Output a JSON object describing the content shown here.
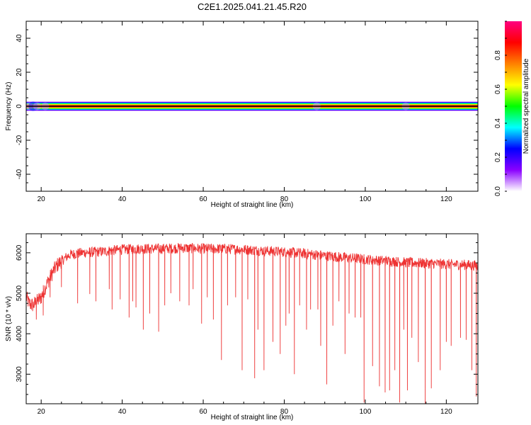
{
  "figure": {
    "title": "C2E1.2025.041.21.45.R20"
  },
  "colorbar": {
    "label": "Normalized spectral amplitude",
    "ticks": [
      "0.0",
      "0.2",
      "0.4",
      "0.6",
      "0.8"
    ],
    "tick_values": [
      0.0,
      0.2,
      0.4,
      0.6,
      0.8
    ],
    "range": [
      0,
      1
    ],
    "colors": [
      "#ffffff",
      "#8a00ff",
      "#0000ff",
      "#00ffff",
      "#00ff00",
      "#ffff00",
      "#ff8000",
      "#ff0000",
      "#ff0080"
    ]
  },
  "panels": {
    "top": {
      "xlabel": "Height of straight line (km)",
      "ylabel": "Frequency (Hz)",
      "xticks": [
        "20",
        "40",
        "60",
        "80",
        "100",
        "120"
      ],
      "yticks": [
        "40",
        "20",
        "0",
        "-20",
        "-40"
      ]
    },
    "bottom": {
      "xlabel": "Height of straight line (km)",
      "ylabel": "SNR (10 * v/v)",
      "xticks": [
        "20",
        "40",
        "60",
        "80",
        "100",
        "120"
      ],
      "yticks": [
        "6000",
        "5000",
        "4000",
        "3000"
      ]
    }
  },
  "chart_data": [
    {
      "type": "heatmap",
      "title": "C2E1.2025.041.21.45.R20",
      "xlabel": "Height of straight line (km)",
      "ylabel": "Frequency (Hz)",
      "xlim": [
        16.3,
        127.8
      ],
      "ylim": [
        -50,
        50
      ],
      "grid": false,
      "x": [
        17,
        18,
        19,
        20,
        21,
        25,
        30,
        40,
        60,
        80,
        88,
        100,
        110,
        120,
        127
      ],
      "y": [
        -2,
        -1,
        0,
        1,
        2
      ],
      "z": [
        [
          0.2,
          0.3,
          0.2,
          0.1,
          0.2,
          0.1,
          0.1,
          0.1,
          0.1,
          0.1,
          0.2,
          0.1,
          0.2,
          0.1,
          0.1
        ],
        [
          0.5,
          0.6,
          0.5,
          0.4,
          0.5,
          0.4,
          0.4,
          0.4,
          0.4,
          0.4,
          0.4,
          0.4,
          0.4,
          0.4,
          0.4
        ],
        [
          1.0,
          1.0,
          1.0,
          1.0,
          1.0,
          1.0,
          1.0,
          1.0,
          1.0,
          1.0,
          1.0,
          1.0,
          1.0,
          1.0,
          1.0
        ],
        [
          0.5,
          0.6,
          0.5,
          0.4,
          0.5,
          0.4,
          0.4,
          0.4,
          0.4,
          0.4,
          0.4,
          0.4,
          0.4,
          0.4,
          0.4
        ],
        [
          0.2,
          0.3,
          0.2,
          0.1,
          0.2,
          0.1,
          0.1,
          0.1,
          0.1,
          0.1,
          0.2,
          0.1,
          0.2,
          0.1,
          0.1
        ]
      ]
    },
    {
      "type": "line",
      "xlabel": "Height of straight line (km)",
      "ylabel": "SNR (10 * v/v)",
      "xlim": [
        16.3,
        127.8
      ],
      "ylim": [
        2270,
        6470
      ],
      "grid": false,
      "color": "#ee3333",
      "baseline": [
        [
          16.3,
          4900
        ],
        [
          17,
          4750
        ],
        [
          18,
          4700
        ],
        [
          19,
          4800
        ],
        [
          20,
          4900
        ],
        [
          21,
          5150
        ],
        [
          22,
          5350
        ],
        [
          23,
          5550
        ],
        [
          24,
          5700
        ],
        [
          25,
          5800
        ],
        [
          27,
          5950
        ],
        [
          30,
          6000
        ],
        [
          35,
          6030
        ],
        [
          40,
          6080
        ],
        [
          45,
          6100
        ],
        [
          50,
          6100
        ],
        [
          55,
          6120
        ],
        [
          60,
          6100
        ],
        [
          65,
          6100
        ],
        [
          70,
          6080
        ],
        [
          75,
          6050
        ],
        [
          80,
          6020
        ],
        [
          85,
          5980
        ],
        [
          90,
          5930
        ],
        [
          95,
          5880
        ],
        [
          100,
          5840
        ],
        [
          105,
          5800
        ],
        [
          110,
          5760
        ],
        [
          115,
          5740
        ],
        [
          120,
          5720
        ],
        [
          125,
          5700
        ],
        [
          127.8,
          5680
        ]
      ],
      "dips": [
        [
          18.8,
          4350
        ],
        [
          20.5,
          4450
        ],
        [
          22.2,
          4900
        ],
        [
          25.0,
          5150
        ],
        [
          29.0,
          4750
        ],
        [
          32.0,
          4980
        ],
        [
          33.5,
          4800
        ],
        [
          36.8,
          5100
        ],
        [
          37.5,
          4600
        ],
        [
          39.5,
          4850
        ],
        [
          41.7,
          4400
        ],
        [
          42.6,
          4800
        ],
        [
          43.4,
          4650
        ],
        [
          45.2,
          4100
        ],
        [
          46.8,
          4500
        ],
        [
          49.0,
          4050
        ],
        [
          50.5,
          4700
        ],
        [
          52.0,
          5000
        ],
        [
          54.2,
          4800
        ],
        [
          56.5,
          4700
        ],
        [
          57.5,
          5100
        ],
        [
          59.6,
          4250
        ],
        [
          61.0,
          4900
        ],
        [
          62.5,
          4350
        ],
        [
          64.5,
          3350
        ],
        [
          66.0,
          4700
        ],
        [
          68.0,
          4900
        ],
        [
          69.6,
          3100
        ],
        [
          71.0,
          4850
        ],
        [
          72.7,
          2900
        ],
        [
          73.5,
          4100
        ],
        [
          75.0,
          3100
        ],
        [
          77.2,
          3800
        ],
        [
          79.0,
          3500
        ],
        [
          80.4,
          4200
        ],
        [
          81.2,
          4500
        ],
        [
          82.5,
          3000
        ],
        [
          83.8,
          4700
        ],
        [
          85.5,
          4100
        ],
        [
          86.5,
          4600
        ],
        [
          88.3,
          4600
        ],
        [
          89.0,
          3700
        ],
        [
          90.5,
          2750
        ],
        [
          92.0,
          4200
        ],
        [
          93.5,
          4800
        ],
        [
          95.0,
          3500
        ],
        [
          96.0,
          4500
        ],
        [
          97.5,
          4400
        ],
        [
          98.9,
          4400
        ],
        [
          99.7,
          2300
        ],
        [
          101.8,
          3200
        ],
        [
          103.5,
          2700
        ],
        [
          104.9,
          2550
        ],
        [
          106.0,
          2600
        ],
        [
          107.3,
          3100
        ],
        [
          108.5,
          2300
        ],
        [
          109.5,
          4100
        ],
        [
          110.4,
          2600
        ],
        [
          111.5,
          3900
        ],
        [
          113.1,
          3300
        ],
        [
          114.8,
          2270
        ],
        [
          116.3,
          2650
        ],
        [
          118.5,
          3100
        ],
        [
          120.0,
          3800
        ],
        [
          121.2,
          3700
        ],
        [
          123.5,
          3900
        ],
        [
          124.9,
          3850
        ],
        [
          126.3,
          3100
        ],
        [
          127.4,
          2450
        ]
      ]
    }
  ]
}
